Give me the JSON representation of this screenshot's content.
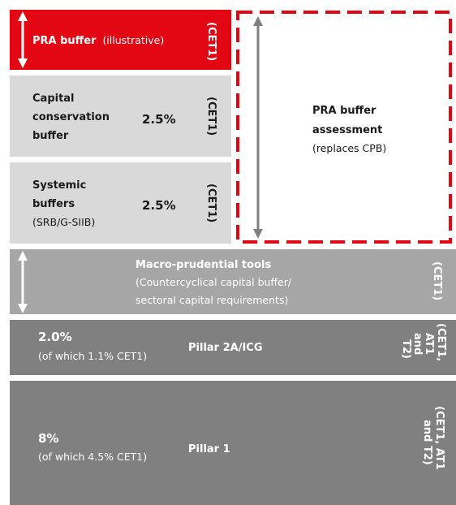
{
  "pra_buffer": {
    "title": "PRA buffer",
    "note": "(illustrative)",
    "tier": "(CET1)"
  },
  "capital_conservation": {
    "lines": [
      "Capital",
      "conservation",
      "buffer"
    ],
    "rate": "2.5%",
    "tier": "(CET1)"
  },
  "systemic": {
    "lines": [
      "Systemic",
      "buffers"
    ],
    "note": "(SRB/G-SIIB)",
    "rate": "2.5%",
    "tier": "(CET1)"
  },
  "assessment": {
    "lines": [
      "PRA buffer",
      "assessment"
    ],
    "note": "(replaces CPB)"
  },
  "macro": {
    "title": "Macro-prudential tools",
    "notes": [
      "(Countercyclical capital buffer/",
      "sectoral capital requirements)"
    ],
    "tier": "(CET1)"
  },
  "pillar2a": {
    "rate": "2.0%",
    "note": "(of which 1.1% CET1)",
    "title": "Pillar 2A/ICG",
    "tier": [
      "(CET1,",
      "AT1",
      "and",
      "T2)"
    ]
  },
  "pillar1": {
    "rate": "8%",
    "note": "(of which 4.5% CET1)",
    "title": "Pillar 1",
    "tier": [
      "(CET1, AT1",
      "and T2)"
    ]
  }
}
